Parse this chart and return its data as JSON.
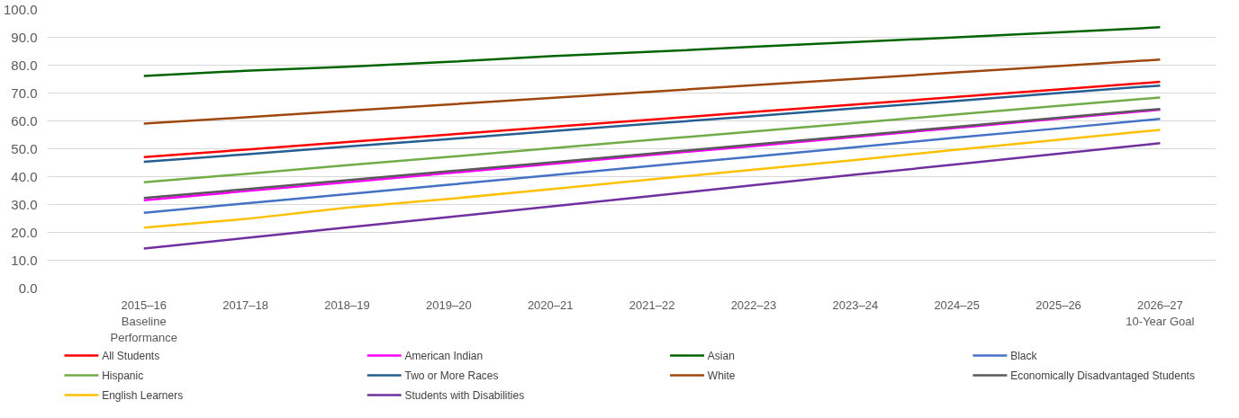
{
  "chart_data": {
    "type": "line",
    "categories": [
      "2015–16\nBaseline\nPerformance",
      "2017–18",
      "2018–19",
      "2019–20",
      "2020–21",
      "2021–22",
      "2022–23",
      "2023–24",
      "2024–25",
      "2025–26",
      "2026–27\n10-Year Goal"
    ],
    "ylim": [
      0,
      100
    ],
    "yticks": [
      {
        "value": 0,
        "label": "0.0"
      },
      {
        "value": 10,
        "label": "10.0"
      },
      {
        "value": 20,
        "label": "20.0"
      },
      {
        "value": 30,
        "label": "30.0"
      },
      {
        "value": 40,
        "label": "40.0"
      },
      {
        "value": 50,
        "label": "50.0"
      },
      {
        "value": 60,
        "label": "60.0"
      },
      {
        "value": 70,
        "label": "70.0"
      },
      {
        "value": 80,
        "label": "80.0"
      },
      {
        "value": 90,
        "label": "90.0"
      },
      {
        "value": 100,
        "label": "100.0"
      }
    ],
    "grid": "y",
    "legend": "bottom",
    "marker": "none",
    "line_style": "solid",
    "series": [
      {
        "name": "All Students",
        "color": "#ff0000",
        "values": [
          47,
          49.7,
          52.4,
          55.1,
          57.8,
          60.5,
          63.2,
          65.9,
          68.6,
          71.3,
          74
        ]
      },
      {
        "name": "American Indian",
        "color": "#ff00ff",
        "values": [
          31.5,
          34.8,
          38,
          41.3,
          44.5,
          47.8,
          51,
          54.3,
          57.5,
          60.8,
          64
        ]
      },
      {
        "name": "Asian",
        "color": "#006400",
        "values": [
          76.1,
          78,
          79.4,
          81.2,
          83.2,
          84.8,
          86.6,
          88.3,
          90,
          91.8,
          93.6
        ]
      },
      {
        "name": "Black",
        "color": "#4472c4",
        "values": [
          27,
          30.4,
          33.7,
          37.1,
          40.5,
          43.9,
          47.2,
          50.6,
          54,
          57.3,
          60.7
        ]
      },
      {
        "name": "Hispanic",
        "color": "#70ad47",
        "values": [
          38,
          41,
          44.1,
          47.1,
          50.2,
          53.2,
          56.2,
          59.3,
          62.3,
          65.4,
          68.4
        ]
      },
      {
        "name": "Two or More Races",
        "color": "#255e91",
        "values": [
          45.3,
          48,
          50.8,
          53.5,
          56.3,
          59,
          61.7,
          64.5,
          67.2,
          70,
          72.7
        ]
      },
      {
        "name": "White",
        "color": "#9e480e",
        "values": [
          59,
          61.3,
          63.6,
          65.9,
          68.2,
          70.5,
          72.8,
          75.1,
          77.4,
          79.7,
          82
        ]
      },
      {
        "name": "Economically Disadvantaged Students",
        "color": "#595959",
        "values": [
          32.3,
          35.5,
          38.7,
          41.9,
          45.1,
          48.3,
          51.5,
          54.7,
          57.9,
          61.1,
          64.3
        ]
      },
      {
        "name": "English Learners",
        "color": "#ffc000",
        "values": [
          21.7,
          24.8,
          28.9,
          32,
          35.5,
          39,
          42.5,
          46,
          49.7,
          53.2,
          56.8
        ]
      },
      {
        "name": "Students with Disabilities",
        "color": "#7030a0",
        "values": [
          14.2,
          18,
          21.8,
          25.5,
          29.3,
          33.1,
          36.9,
          40.7,
          44.4,
          48.2,
          52
        ]
      }
    ]
  }
}
